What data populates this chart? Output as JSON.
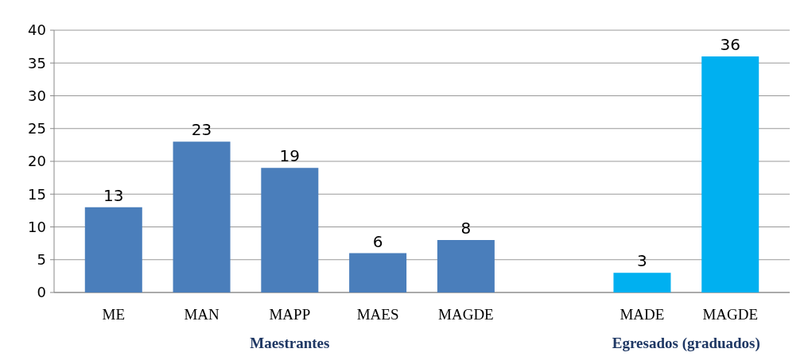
{
  "chart_data": {
    "type": "bar",
    "categories": [
      "ME",
      "MAN",
      "MAPP",
      "MAES",
      "MAGDE",
      null,
      "MADE",
      "MAGDE"
    ],
    "series": [
      {
        "name": "Maestrantes",
        "color": "#4a7ebb",
        "values": [
          13,
          23,
          19,
          6,
          8,
          null,
          null,
          null
        ]
      },
      {
        "name": "Egresados (graduados)",
        "color": "#00b0f0",
        "values": [
          null,
          null,
          null,
          null,
          null,
          null,
          3,
          36
        ]
      }
    ],
    "ylim": [
      0,
      40
    ],
    "yticks": [
      0,
      5,
      10,
      15,
      20,
      25,
      30,
      35,
      40
    ],
    "grid": "y",
    "data_labels": true
  }
}
